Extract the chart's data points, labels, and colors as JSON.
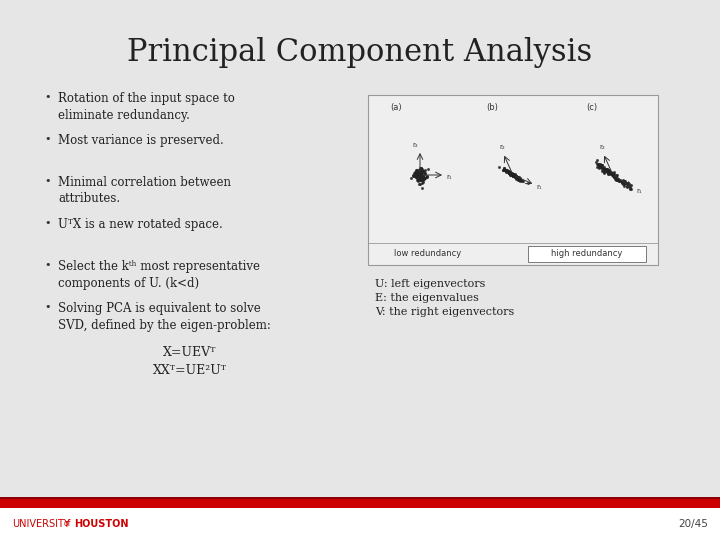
{
  "title": "Principal Component Analysis",
  "background_color": "#e6e6e6",
  "title_font": 22,
  "title_color": "#222222",
  "bullets": [
    "Rotation of the input space to\neliminate redundancy.",
    "Most variance is preserved.",
    "Minimal correlation between\nattributes.",
    "UᵀX is a new rotated space.",
    "Select the kᵗʰ most representative\ncomponents of U. (k<d)",
    "Solving PCA is equivalent to solve\nSVD, defined by the eigen-problem:"
  ],
  "bullet_font": 8.5,
  "equations": [
    "X=UEVᵀ",
    "XXᵀ=UE²Uᵀ"
  ],
  "right_text": [
    "U: left eigenvectors",
    "E: the eigenvalues",
    "V: the right eigenvectors"
  ],
  "footer_page": "20/45",
  "footer_bar_color": "#cc0000",
  "footer_text_color": "#cc0000",
  "slide_bg": "#e6e6e6"
}
